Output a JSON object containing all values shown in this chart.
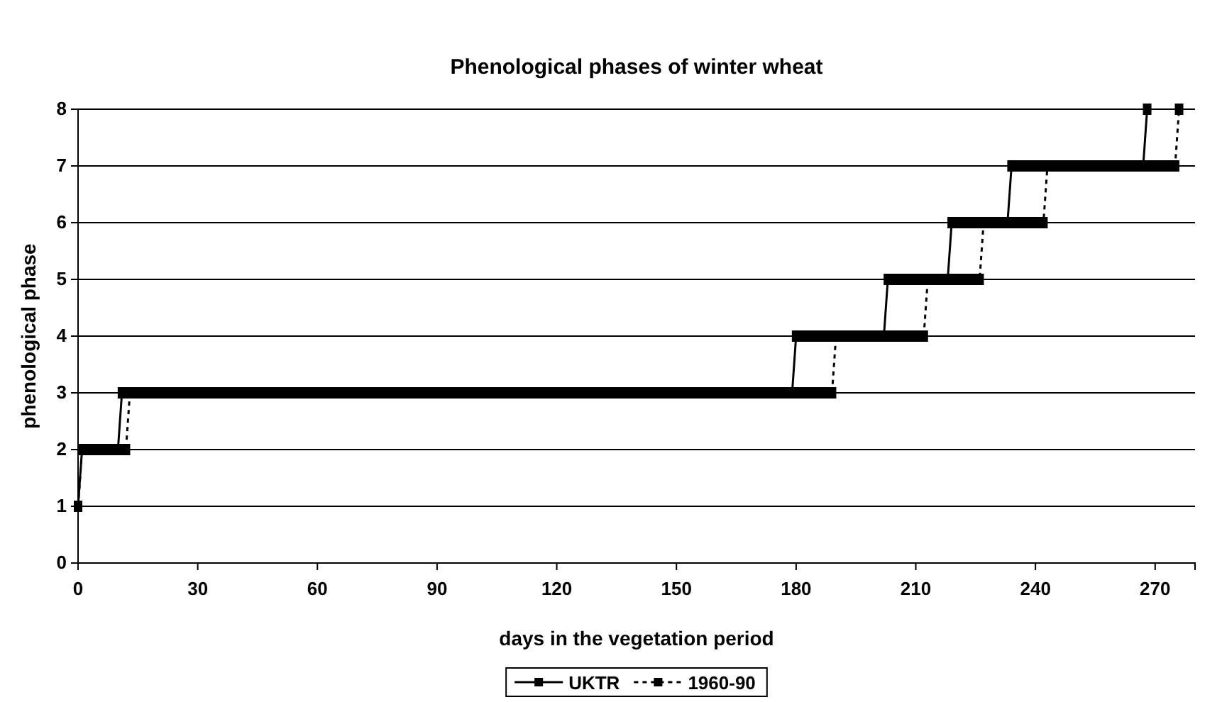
{
  "chart_data": {
    "type": "line",
    "title": "Phenological phases of winter wheat",
    "xlabel": "days in the vegetation period",
    "ylabel": "phenological phase",
    "xlim": [
      0,
      280
    ],
    "xticks": [
      0,
      30,
      60,
      90,
      120,
      150,
      180,
      210,
      240,
      270
    ],
    "ylim": [
      0,
      8
    ],
    "yticks": [
      0,
      1,
      2,
      3,
      4,
      5,
      6,
      7,
      8
    ],
    "grid": "y",
    "legend": "bottom",
    "x": [
      0,
      1,
      2,
      3,
      4,
      5,
      6,
      7,
      8,
      9,
      10,
      11,
      12,
      13,
      14,
      15,
      16,
      17,
      18,
      19,
      20,
      21,
      22,
      23,
      24,
      25,
      26,
      27,
      28,
      29,
      30,
      31,
      32,
      33,
      34,
      35,
      36,
      37,
      38,
      39,
      40,
      41,
      42,
      43,
      44,
      45,
      46,
      47,
      48,
      49,
      50,
      51,
      52,
      53,
      54,
      55,
      56,
      57,
      58,
      59,
      60,
      61,
      62,
      63,
      64,
      65,
      66,
      67,
      68,
      69,
      70,
      71,
      72,
      73,
      74,
      75,
      76,
      77,
      78,
      79,
      80,
      81,
      82,
      83,
      84,
      85,
      86,
      87,
      88,
      89,
      90,
      91,
      92,
      93,
      94,
      95,
      96,
      97,
      98,
      99,
      100,
      101,
      102,
      103,
      104,
      105,
      106,
      107,
      108,
      109,
      110,
      111,
      112,
      113,
      114,
      115,
      116,
      117,
      118,
      119,
      120,
      121,
      122,
      123,
      124,
      125,
      126,
      127,
      128,
      129,
      130,
      131,
      132,
      133,
      134,
      135,
      136,
      137,
      138,
      139,
      140,
      141,
      142,
      143,
      144,
      145,
      146,
      147,
      148,
      149,
      150,
      151,
      152,
      153,
      154,
      155,
      156,
      157,
      158,
      159,
      160,
      161,
      162,
      163,
      164,
      165,
      166,
      167,
      168,
      169,
      170,
      171,
      172,
      173,
      174,
      175,
      176,
      177,
      178,
      179,
      180,
      181,
      182,
      183,
      184,
      185,
      186,
      187,
      188,
      189,
      190,
      191,
      192,
      193,
      194,
      195,
      196,
      197,
      198,
      199,
      200,
      201,
      202,
      203,
      204,
      205,
      206,
      207,
      208,
      209,
      210,
      211,
      212,
      213,
      214,
      215,
      216,
      217,
      218,
      219,
      220,
      221,
      222,
      223,
      224,
      225,
      226,
      227,
      228,
      229,
      230,
      231,
      232,
      233,
      234,
      235,
      236,
      237,
      238,
      239,
      240,
      241,
      242,
      243,
      244,
      245,
      246,
      247,
      248,
      249,
      250,
      251,
      252,
      253,
      254,
      255,
      256,
      257,
      258,
      259,
      260,
      261,
      262,
      263,
      264,
      265,
      266,
      267,
      268,
      269,
      270,
      271,
      272,
      273,
      274,
      275,
      276
    ],
    "series": [
      {
        "name": "UKTR",
        "color": "#000000",
        "line_style": "solid",
        "marker": "square",
        "values": [
          1,
          2,
          2,
          2,
          2,
          2,
          2,
          2,
          2,
          2,
          2,
          3,
          3,
          3,
          3,
          3,
          3,
          3,
          3,
          3,
          3,
          3,
          3,
          3,
          3,
          3,
          3,
          3,
          3,
          3,
          3,
          3,
          3,
          3,
          3,
          3,
          3,
          3,
          3,
          3,
          3,
          3,
          3,
          3,
          3,
          3,
          3,
          3,
          3,
          3,
          3,
          3,
          3,
          3,
          3,
          3,
          3,
          3,
          3,
          3,
          3,
          3,
          3,
          3,
          3,
          3,
          3,
          3,
          3,
          3,
          3,
          3,
          3,
          3,
          3,
          3,
          3,
          3,
          3,
          3,
          3,
          3,
          3,
          3,
          3,
          3,
          3,
          3,
          3,
          3,
          3,
          3,
          3,
          3,
          3,
          3,
          3,
          3,
          3,
          3,
          3,
          3,
          3,
          3,
          3,
          3,
          3,
          3,
          3,
          3,
          3,
          3,
          3,
          3,
          3,
          3,
          3,
          3,
          3,
          3,
          3,
          3,
          3,
          3,
          3,
          3,
          3,
          3,
          3,
          3,
          3,
          3,
          3,
          3,
          3,
          3,
          3,
          3,
          3,
          3,
          3,
          3,
          3,
          3,
          3,
          3,
          3,
          3,
          3,
          3,
          3,
          3,
          3,
          3,
          3,
          3,
          3,
          3,
          3,
          3,
          3,
          3,
          3,
          3,
          3,
          3,
          3,
          3,
          3,
          3,
          3,
          3,
          3,
          3,
          3,
          3,
          3,
          3,
          3,
          3,
          4,
          4,
          4,
          4,
          4,
          4,
          4,
          4,
          4,
          4,
          4,
          4,
          4,
          4,
          4,
          4,
          4,
          4,
          4,
          4,
          4,
          4,
          4,
          5,
          5,
          5,
          5,
          5,
          5,
          5,
          5,
          5,
          5,
          5,
          5,
          5,
          5,
          5,
          5,
          6,
          6,
          6,
          6,
          6,
          6,
          6,
          6,
          6,
          6,
          6,
          6,
          6,
          6,
          6,
          7,
          7,
          7,
          7,
          7,
          7,
          7,
          7,
          7,
          7,
          7,
          7,
          7,
          7,
          7,
          7,
          7,
          7,
          7,
          7,
          7,
          7,
          7,
          7,
          7,
          7,
          7,
          7,
          7,
          7,
          7,
          7,
          7,
          7,
          8,
          null,
          null,
          null,
          null,
          null,
          null,
          null,
          null
        ]
      },
      {
        "name": "1960-90",
        "color": "#000000",
        "line_style": "dotted",
        "marker": "square",
        "values": [
          1,
          2,
          2,
          2,
          2,
          2,
          2,
          2,
          2,
          2,
          2,
          2,
          2,
          3,
          3,
          3,
          3,
          3,
          3,
          3,
          3,
          3,
          3,
          3,
          3,
          3,
          3,
          3,
          3,
          3,
          3,
          3,
          3,
          3,
          3,
          3,
          3,
          3,
          3,
          3,
          3,
          3,
          3,
          3,
          3,
          3,
          3,
          3,
          3,
          3,
          3,
          3,
          3,
          3,
          3,
          3,
          3,
          3,
          3,
          3,
          3,
          3,
          3,
          3,
          3,
          3,
          3,
          3,
          3,
          3,
          3,
          3,
          3,
          3,
          3,
          3,
          3,
          3,
          3,
          3,
          3,
          3,
          3,
          3,
          3,
          3,
          3,
          3,
          3,
          3,
          3,
          3,
          3,
          3,
          3,
          3,
          3,
          3,
          3,
          3,
          3,
          3,
          3,
          3,
          3,
          3,
          3,
          3,
          3,
          3,
          3,
          3,
          3,
          3,
          3,
          3,
          3,
          3,
          3,
          3,
          3,
          3,
          3,
          3,
          3,
          3,
          3,
          3,
          3,
          3,
          3,
          3,
          3,
          3,
          3,
          3,
          3,
          3,
          3,
          3,
          3,
          3,
          3,
          3,
          3,
          3,
          3,
          3,
          3,
          3,
          3,
          3,
          3,
          3,
          3,
          3,
          3,
          3,
          3,
          3,
          3,
          3,
          3,
          3,
          3,
          3,
          3,
          3,
          3,
          3,
          3,
          3,
          3,
          3,
          3,
          3,
          3,
          3,
          3,
          3,
          3,
          3,
          3,
          3,
          3,
          3,
          3,
          3,
          3,
          3,
          4,
          4,
          4,
          4,
          4,
          4,
          4,
          4,
          4,
          4,
          4,
          4,
          4,
          4,
          4,
          4,
          4,
          4,
          4,
          4,
          4,
          4,
          4,
          5,
          5,
          5,
          5,
          5,
          5,
          5,
          5,
          5,
          5,
          5,
          5,
          5,
          5,
          6,
          6,
          6,
          6,
          6,
          6,
          6,
          6,
          6,
          6,
          6,
          6,
          6,
          6,
          6,
          6,
          7,
          7,
          7,
          7,
          7,
          7,
          7,
          7,
          7,
          7,
          7,
          7,
          7,
          7,
          7,
          7,
          7,
          7,
          7,
          7,
          7,
          7,
          7,
          7,
          7,
          7,
          7,
          7,
          7,
          7,
          7,
          7,
          7,
          8
        ]
      }
    ]
  }
}
